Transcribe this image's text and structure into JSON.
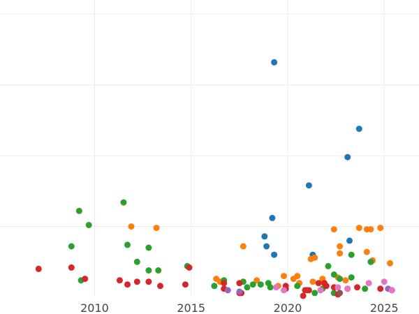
{
  "chart_data": {
    "type": "scatter",
    "title": "",
    "xlabel": "",
    "ylabel": "",
    "x_ticks": [
      2010,
      2015,
      2020,
      2025
    ],
    "xlim": [
      2005.1,
      2026.8
    ],
    "ylim": [
      0,
      21
    ],
    "grid": true,
    "colors": [
      "#1f77b4",
      "#ff7f0e",
      "#2ca02c",
      "#d62728",
      "#9467bd",
      "#e377c2",
      "#8c564b"
    ],
    "series": [
      {
        "color": "#1f77b4",
        "points": [
          [
            2019.3,
            16.6
          ],
          [
            2023.7,
            11.9
          ],
          [
            2023.1,
            9.9
          ],
          [
            2021.1,
            7.9
          ],
          [
            2019.2,
            5.6
          ],
          [
            2018.8,
            4.3
          ],
          [
            2018.9,
            3.6
          ],
          [
            2019.3,
            3.0
          ],
          [
            2021.3,
            3.0
          ],
          [
            2023.2,
            4.0
          ]
        ]
      },
      {
        "color": "#ff7f0e",
        "points": [
          [
            2011.9,
            5.0
          ],
          [
            2013.2,
            4.9
          ],
          [
            2017.7,
            3.6
          ],
          [
            2022.4,
            4.8
          ],
          [
            2023.7,
            4.9
          ],
          [
            2024.1,
            4.8
          ],
          [
            2024.3,
            4.8
          ],
          [
            2024.8,
            4.9
          ],
          [
            2022.7,
            3.6
          ],
          [
            2022.7,
            3.1
          ],
          [
            2024.1,
            3.2
          ],
          [
            2021.2,
            2.7
          ],
          [
            2021.4,
            2.8
          ],
          [
            2025.3,
            2.4
          ],
          [
            2024.4,
            2.6
          ],
          [
            2016.3,
            1.3
          ],
          [
            2016.5,
            1.1
          ],
          [
            2018.4,
            1.2
          ],
          [
            2019.8,
            1.5
          ],
          [
            2020.3,
            1.3
          ],
          [
            2020.5,
            1.5
          ],
          [
            2020.6,
            1.0
          ],
          [
            2021.3,
            1.1
          ],
          [
            2021.8,
            1.3
          ],
          [
            2022.6,
            1.4
          ],
          [
            2023.0,
            1.2
          ],
          [
            2019.5,
            0.8
          ]
        ]
      },
      {
        "color": "#2ca02c",
        "points": [
          [
            2009.2,
            6.1
          ],
          [
            2011.5,
            6.7
          ],
          [
            2009.7,
            5.1
          ],
          [
            2008.8,
            3.6
          ],
          [
            2011.7,
            3.7
          ],
          [
            2012.8,
            3.5
          ],
          [
            2012.2,
            2.5
          ],
          [
            2012.8,
            1.9
          ],
          [
            2013.3,
            1.9
          ],
          [
            2014.8,
            2.2
          ],
          [
            2009.3,
            1.2
          ],
          [
            2016.2,
            0.8
          ],
          [
            2016.7,
            1.2
          ],
          [
            2017.7,
            1.1
          ],
          [
            2017.9,
            0.7
          ],
          [
            2018.2,
            0.9
          ],
          [
            2018.6,
            0.9
          ],
          [
            2019.0,
            1.0
          ],
          [
            2019.1,
            0.7
          ],
          [
            2020.5,
            0.8
          ],
          [
            2021.0,
            0.5
          ],
          [
            2021.4,
            0.3
          ],
          [
            2021.8,
            0.6
          ],
          [
            2022.1,
            2.2
          ],
          [
            2022.4,
            1.6
          ],
          [
            2022.7,
            1.3
          ],
          [
            2023.3,
            1.4
          ],
          [
            2023.3,
            3.0
          ],
          [
            2024.3,
            2.5
          ],
          [
            2024.0,
            0.6
          ],
          [
            2022.4,
            0.3
          ]
        ]
      },
      {
        "color": "#d62728",
        "points": [
          [
            2007.1,
            2.0
          ],
          [
            2008.8,
            2.1
          ],
          [
            2009.5,
            1.3
          ],
          [
            2011.3,
            1.2
          ],
          [
            2011.7,
            0.9
          ],
          [
            2012.2,
            1.1
          ],
          [
            2012.8,
            1.1
          ],
          [
            2013.4,
            0.8
          ],
          [
            2014.7,
            0.9
          ],
          [
            2014.9,
            2.1
          ],
          [
            2016.7,
            1.0
          ],
          [
            2016.7,
            0.6
          ],
          [
            2017.5,
            0.3
          ],
          [
            2017.6,
            0.3
          ],
          [
            2017.5,
            1.0
          ],
          [
            2019.9,
            0.8
          ],
          [
            2019.9,
            0.6
          ],
          [
            2020.8,
            0.1
          ],
          [
            2020.9,
            0.5
          ],
          [
            2021.1,
            0.5
          ],
          [
            2021.6,
            1.0
          ],
          [
            2021.9,
            1.0
          ],
          [
            2022.0,
            0.8
          ],
          [
            2022.4,
            0.7
          ],
          [
            2022.6,
            0.2
          ],
          [
            2023.1,
            0.6
          ],
          [
            2023.6,
            0.7
          ],
          [
            2024.8,
            0.6
          ],
          [
            2025.4,
            0.5
          ]
        ]
      },
      {
        "color": "#9467bd",
        "points": [
          [
            2016.9,
            0.5
          ],
          [
            2017.5,
            0.4
          ],
          [
            2025.2,
            0.6
          ]
        ]
      },
      {
        "color": "#e377c2",
        "points": [
          [
            2019.4,
            0.7
          ],
          [
            2019.8,
            0.5
          ],
          [
            2021.7,
            0.5
          ],
          [
            2022.6,
            0.7
          ],
          [
            2023.1,
            0.6
          ],
          [
            2024.2,
            1.0
          ],
          [
            2025.0,
            1.1
          ],
          [
            2025.4,
            0.5
          ]
        ]
      },
      {
        "color": "#8c564b",
        "points": [
          [
            2022.7,
            0.3
          ]
        ]
      }
    ]
  }
}
